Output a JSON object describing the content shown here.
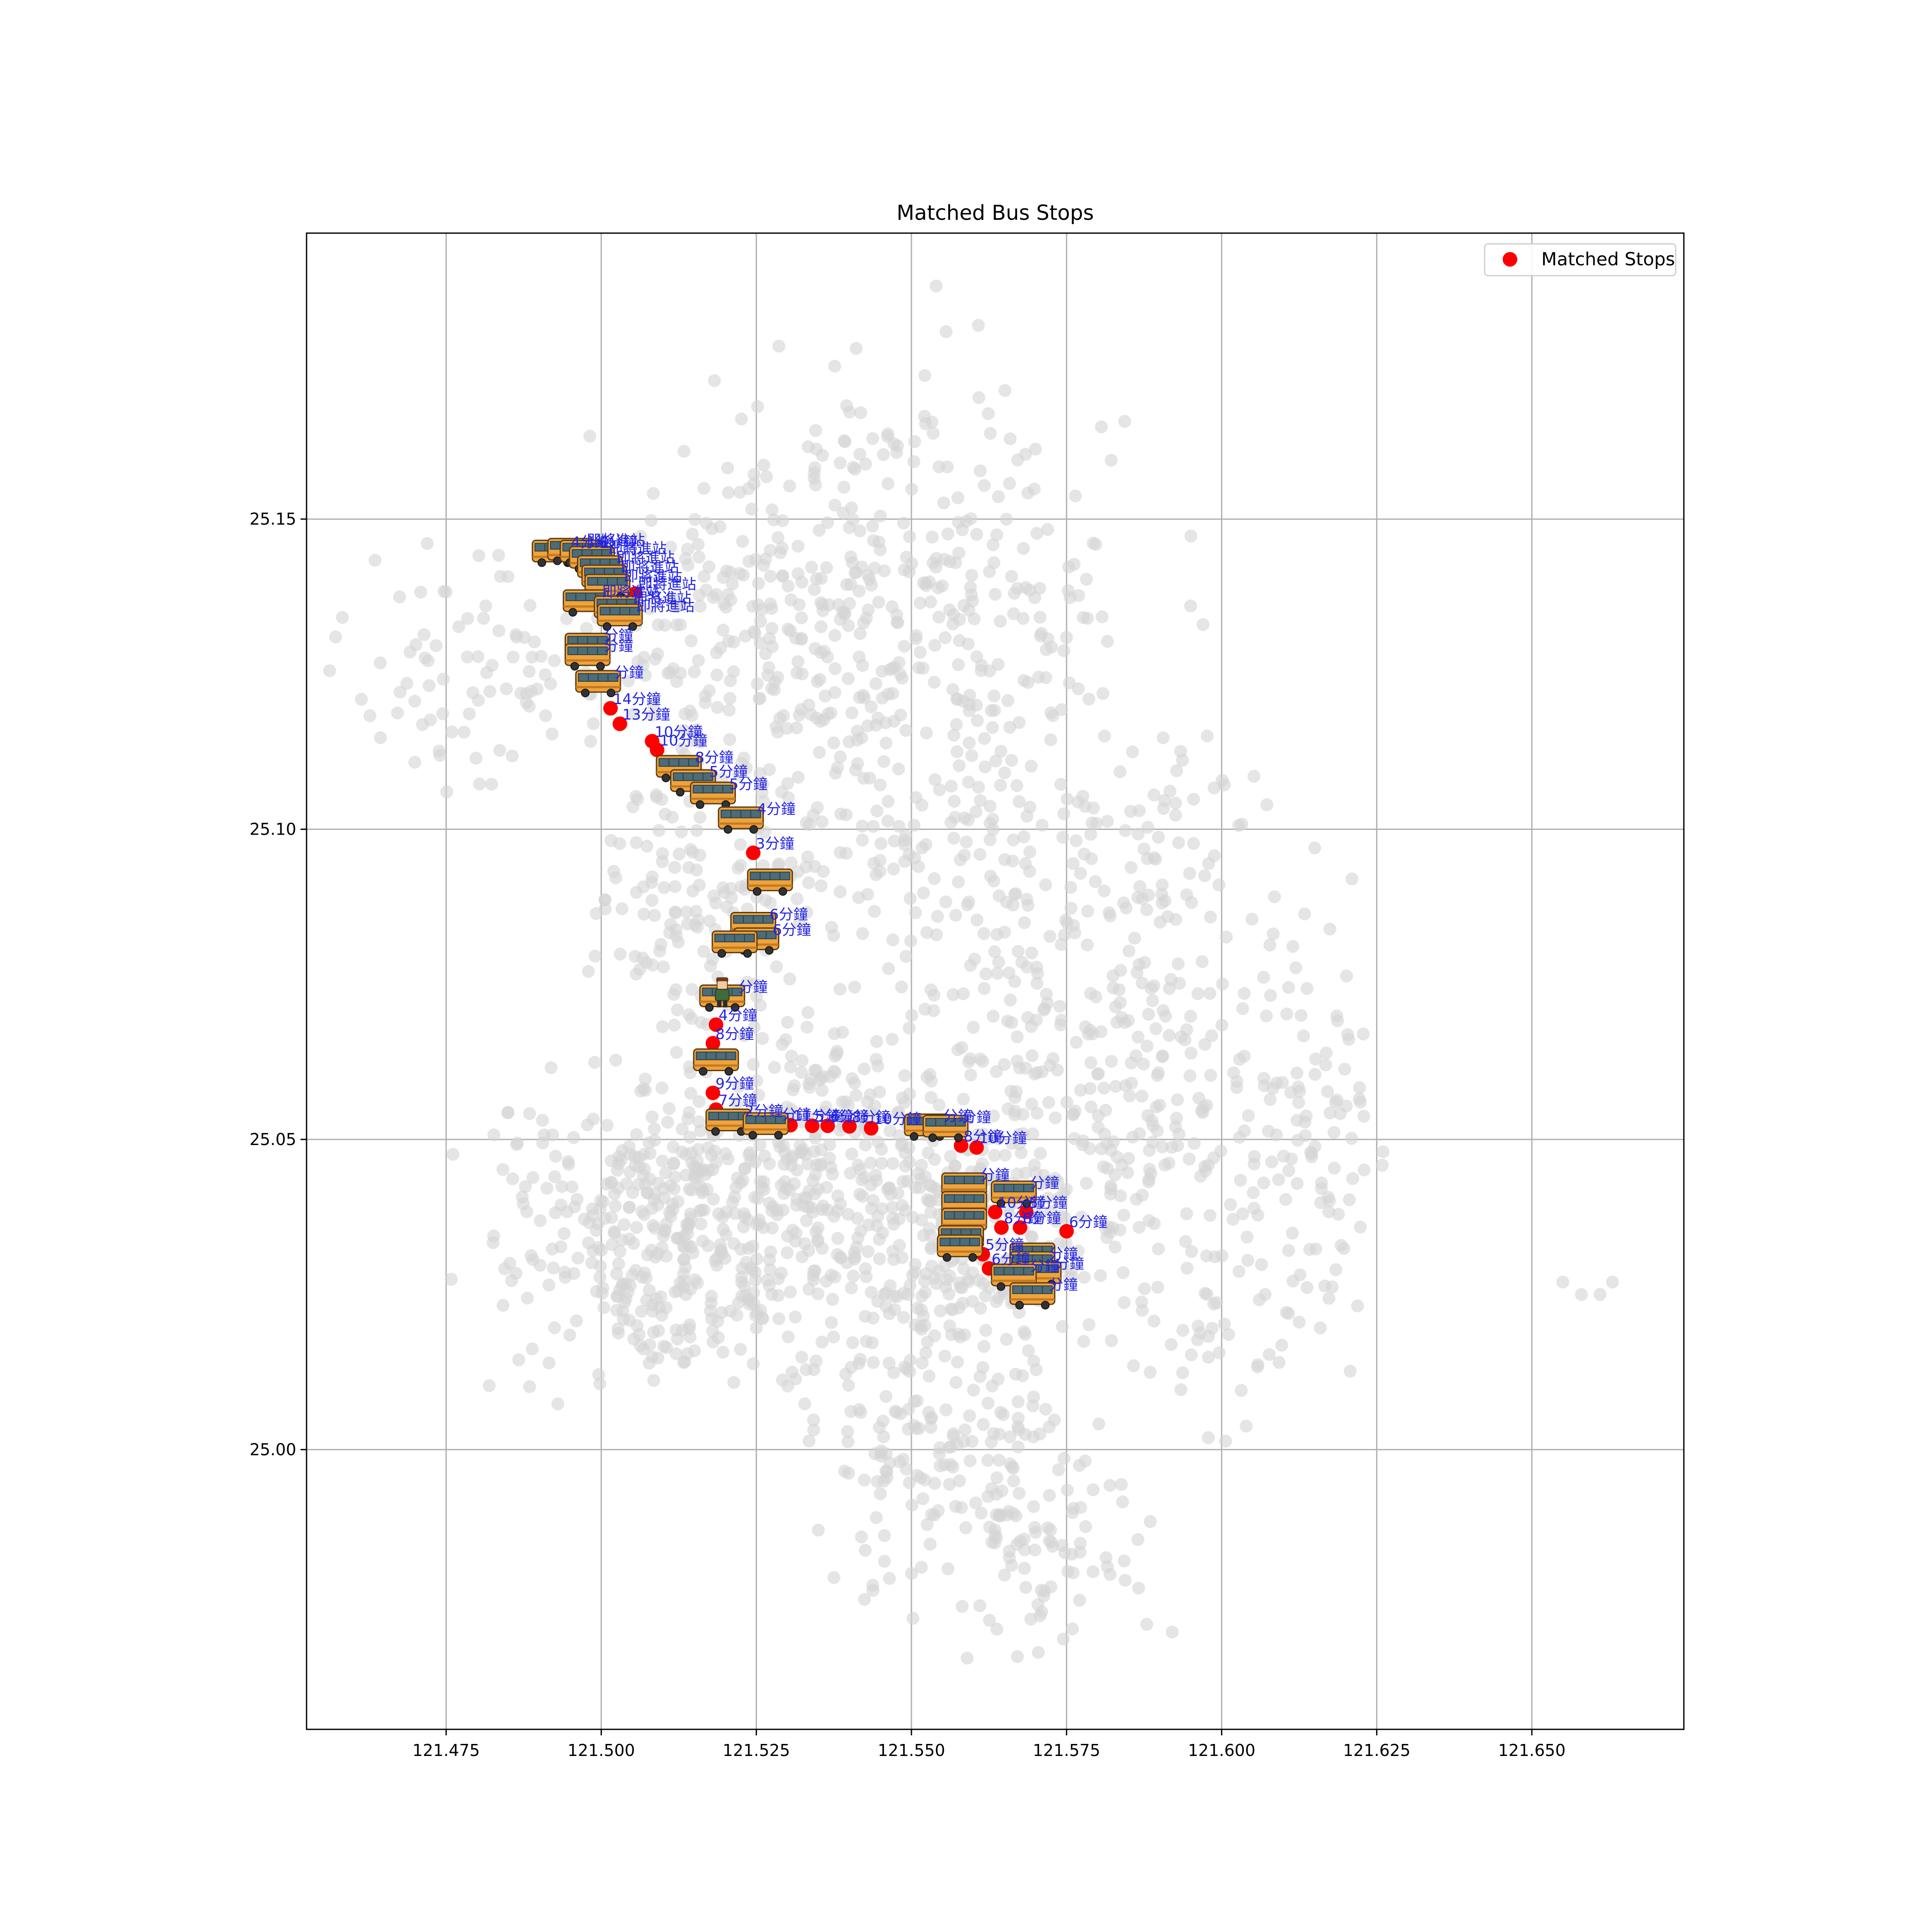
{
  "chart_data": {
    "type": "scatter",
    "title": "Matched Bus Stops",
    "xlabel": "",
    "ylabel": "",
    "xlim": [
      121.4525,
      121.6745
    ],
    "ylim": [
      24.9549,
      25.1961
    ],
    "x_ticks": [
      "121.475",
      "121.500",
      "121.525",
      "121.550",
      "121.575",
      "121.600",
      "121.625",
      "121.650"
    ],
    "x_tick_values": [
      121.475,
      121.5,
      121.525,
      121.55,
      121.575,
      121.6,
      121.625,
      121.65
    ],
    "y_ticks": [
      "25.00",
      "25.05",
      "25.10",
      "25.15"
    ],
    "y_tick_values": [
      25.0,
      25.05,
      25.1,
      25.15
    ],
    "grid": true,
    "legend": {
      "placement": "top-right",
      "entries": [
        "Matched Stops"
      ]
    },
    "colors": {
      "matched": "#ff0000",
      "background_stops": "#d3d3d3",
      "eta_label": "#2323e6",
      "bus_body": "#f0a33a",
      "bus_window": "#4b6c78",
      "grid": "#b0b0b0"
    },
    "icons": {
      "bus": "bus-icon",
      "user": "person-icon"
    },
    "user_location": [
      121.5195,
      25.0735
    ],
    "background_stop_clusters": [
      {
        "cx": 121.51,
        "cy": 25.035,
        "sx": 0.014,
        "sy": 0.012,
        "n": 380
      },
      {
        "cx": 121.535,
        "cy": 25.045,
        "sx": 0.012,
        "sy": 0.013,
        "n": 300
      },
      {
        "cx": 121.58,
        "cy": 25.06,
        "sx": 0.016,
        "sy": 0.018,
        "n": 330
      },
      {
        "cx": 121.56,
        "cy": 25.035,
        "sx": 0.012,
        "sy": 0.012,
        "n": 180
      },
      {
        "cx": 121.555,
        "cy": 25.0,
        "sx": 0.01,
        "sy": 0.013,
        "n": 190
      },
      {
        "cx": 121.525,
        "cy": 25.13,
        "sx": 0.012,
        "sy": 0.017,
        "n": 220
      },
      {
        "cx": 121.545,
        "cy": 25.14,
        "sx": 0.012,
        "sy": 0.02,
        "n": 170
      },
      {
        "cx": 121.565,
        "cy": 25.13,
        "sx": 0.01,
        "sy": 0.02,
        "n": 150
      },
      {
        "cx": 121.48,
        "cy": 25.125,
        "sx": 0.012,
        "sy": 0.01,
        "n": 90
      },
      {
        "cx": 121.515,
        "cy": 25.085,
        "sx": 0.008,
        "sy": 0.012,
        "n": 110
      },
      {
        "cx": 121.615,
        "cy": 25.05,
        "sx": 0.006,
        "sy": 0.015,
        "n": 90
      },
      {
        "cx": 121.59,
        "cy": 25.1,
        "sx": 0.008,
        "sy": 0.01,
        "n": 60
      },
      {
        "cx": 121.55,
        "cy": 25.095,
        "sx": 0.015,
        "sy": 0.008,
        "n": 90
      },
      {
        "cx": 121.575,
        "cy": 24.985,
        "sx": 0.008,
        "sy": 0.01,
        "n": 70
      },
      {
        "cx": 121.6,
        "cy": 25.02,
        "sx": 0.008,
        "sy": 0.008,
        "n": 40
      }
    ],
    "background_stop_extras": [
      [
        121.655,
        25.027
      ],
      [
        121.658,
        25.025
      ],
      [
        121.661,
        25.025
      ],
      [
        121.663,
        25.027
      ],
      [
        121.597,
        25.133
      ],
      [
        121.595,
        25.136
      ],
      [
        121.607,
        25.025
      ],
      [
        121.621,
        25.092
      ],
      [
        121.615,
        25.097
      ]
    ],
    "matched_stops": [
      {
        "x": 121.5015,
        "y": 25.1195,
        "label": "14分鐘"
      },
      {
        "x": 121.503,
        "y": 25.117,
        "label": "13分鐘"
      },
      {
        "x": 121.5055,
        "y": 25.138,
        "label": "即將進站"
      },
      {
        "x": 121.5082,
        "y": 25.1142,
        "label": "10分鐘"
      },
      {
        "x": 121.509,
        "y": 25.1128,
        "label": "10分鐘"
      },
      {
        "x": 121.5245,
        "y": 25.0962,
        "label": "3分鐘"
      },
      {
        "x": 121.5185,
        "y": 25.0685,
        "label": "4分鐘"
      },
      {
        "x": 121.518,
        "y": 25.0655,
        "label": "8分鐘"
      },
      {
        "x": 121.518,
        "y": 25.0575,
        "label": "9分鐘"
      },
      {
        "x": 121.5185,
        "y": 25.0548,
        "label": "7分鐘"
      },
      {
        "x": 121.5305,
        "y": 25.0523,
        "label": "11分鐘"
      },
      {
        "x": 121.534,
        "y": 25.0522,
        "label": "5分鐘"
      },
      {
        "x": 121.5365,
        "y": 25.0522,
        "label": "6分鐘"
      },
      {
        "x": 121.54,
        "y": 25.0521,
        "label": "8分鐘"
      },
      {
        "x": 121.5435,
        "y": 25.0518,
        "label": "10分鐘"
      },
      {
        "x": 121.558,
        "y": 25.049,
        "label": "8分鐘"
      },
      {
        "x": 121.5605,
        "y": 25.0487,
        "label": "10分鐘"
      },
      {
        "x": 121.5635,
        "y": 25.0383,
        "label": "10分鐘"
      },
      {
        "x": 121.5685,
        "y": 25.0383,
        "label": "5分鐘"
      },
      {
        "x": 121.5645,
        "y": 25.0358,
        "label": "8分鐘"
      },
      {
        "x": 121.5675,
        "y": 25.0358,
        "label": "6分鐘"
      },
      {
        "x": 121.575,
        "y": 25.0352,
        "label": "6分鐘"
      },
      {
        "x": 121.5615,
        "y": 25.0315,
        "label": "5分鐘"
      },
      {
        "x": 121.5625,
        "y": 25.0292,
        "label": "6分鐘"
      }
    ],
    "bus_markers": [
      {
        "x": 121.4925,
        "y": 25.1445,
        "label": "4分鐘"
      },
      {
        "x": 121.495,
        "y": 25.1448,
        "label": "即將進站"
      },
      {
        "x": 121.497,
        "y": 25.1445,
        "label": "6分鐘"
      },
      {
        "x": 121.4985,
        "y": 25.1435,
        "label": "即將進站"
      },
      {
        "x": 121.4998,
        "y": 25.142,
        "label": "即將進站"
      },
      {
        "x": 121.5005,
        "y": 25.1405,
        "label": "即將進站"
      },
      {
        "x": 121.501,
        "y": 25.139,
        "label": "即將進站"
      },
      {
        "x": 121.4975,
        "y": 25.1365,
        "label": "即將進站"
      },
      {
        "x": 121.5025,
        "y": 25.1355,
        "label": "即將進站"
      },
      {
        "x": 121.503,
        "y": 25.1342,
        "label": "即將進站"
      },
      {
        "x": 121.4978,
        "y": 25.1295,
        "label": "分鐘"
      },
      {
        "x": 121.4978,
        "y": 25.1278,
        "label": "分鐘"
      },
      {
        "x": 121.4995,
        "y": 25.1235,
        "label": "分鐘"
      },
      {
        "x": 121.5125,
        "y": 25.1098,
        "label": "8分鐘"
      },
      {
        "x": 121.5148,
        "y": 25.1075,
        "label": "5分鐘"
      },
      {
        "x": 121.518,
        "y": 25.1055,
        "label": "5分鐘"
      },
      {
        "x": 121.5225,
        "y": 25.1015,
        "label": "4分鐘"
      },
      {
        "x": 121.5272,
        "y": 25.0915,
        "label": ""
      },
      {
        "x": 121.5245,
        "y": 25.0845,
        "label": "6分鐘"
      },
      {
        "x": 121.525,
        "y": 25.082,
        "label": "6分鐘"
      },
      {
        "x": 121.5215,
        "y": 25.0815,
        "label": ""
      },
      {
        "x": 121.5195,
        "y": 25.0728,
        "label": "分鐘"
      },
      {
        "x": 121.5185,
        "y": 25.0625,
        "label": ""
      },
      {
        "x": 121.5205,
        "y": 25.0528,
        "label": "2分鐘"
      },
      {
        "x": 121.5265,
        "y": 25.0522,
        "label": "分鐘"
      },
      {
        "x": 121.5525,
        "y": 25.052,
        "label": "分鐘"
      },
      {
        "x": 121.5555,
        "y": 25.0518,
        "label": "分鐘"
      },
      {
        "x": 121.5585,
        "y": 25.0425,
        "label": "分鐘"
      },
      {
        "x": 121.5585,
        "y": 25.0395,
        "label": ""
      },
      {
        "x": 121.5585,
        "y": 25.0368,
        "label": ""
      },
      {
        "x": 121.558,
        "y": 25.034,
        "label": ""
      },
      {
        "x": 121.5578,
        "y": 25.0325,
        "label": ""
      },
      {
        "x": 121.5665,
        "y": 25.0412,
        "label": "分鐘"
      },
      {
        "x": 121.5695,
        "y": 25.0312,
        "label": ""
      },
      {
        "x": 121.5695,
        "y": 25.0298,
        "label": "分鐘"
      },
      {
        "x": 121.5705,
        "y": 25.0282,
        "label": "分鐘"
      },
      {
        "x": 121.5665,
        "y": 25.0278,
        "label": "分鐘"
      },
      {
        "x": 121.5695,
        "y": 25.0248,
        "label": "分鐘"
      }
    ]
  }
}
